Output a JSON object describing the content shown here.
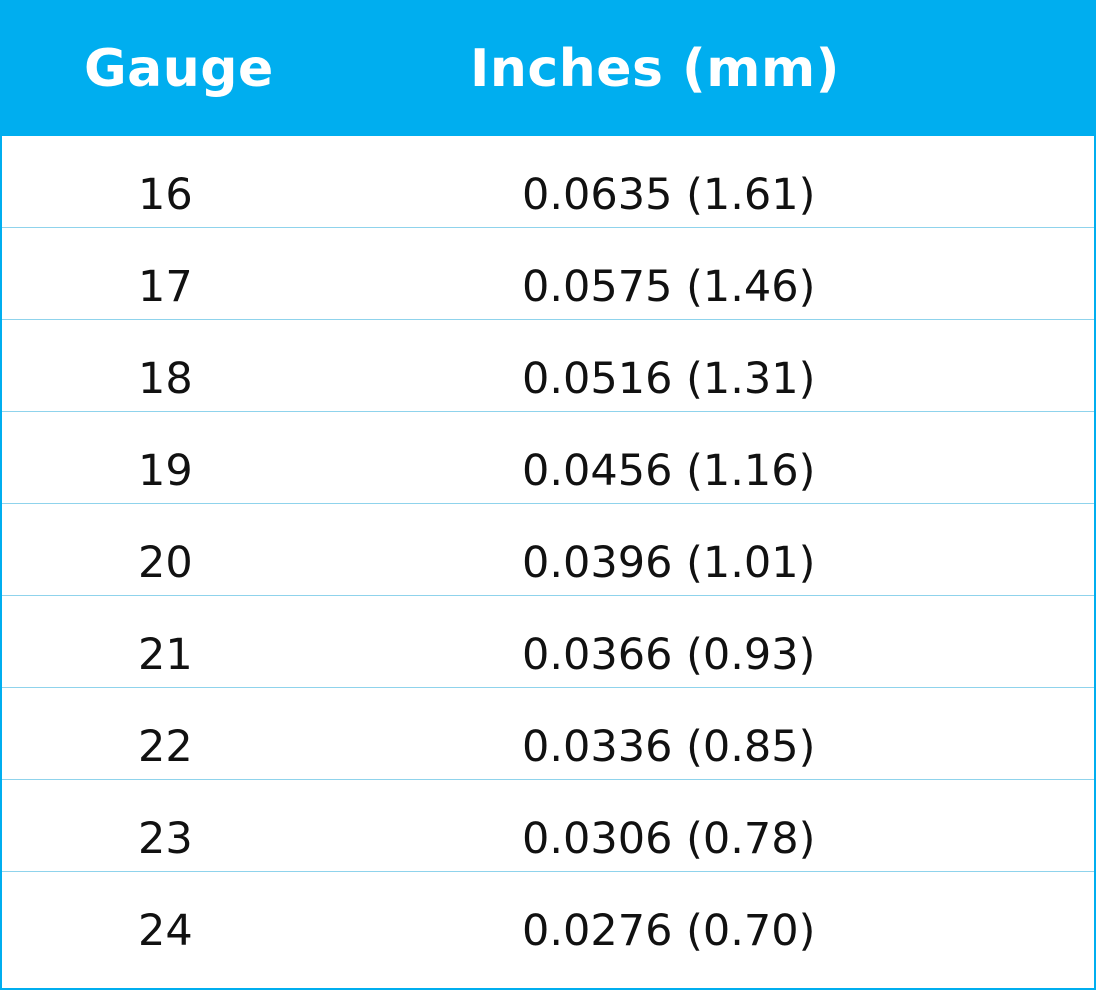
{
  "table": {
    "headers": {
      "gauge": "Gauge",
      "inches": "Inches (mm)"
    },
    "rows": [
      {
        "gauge": "16",
        "inches": "0.0635 (1.61)"
      },
      {
        "gauge": "17",
        "inches": "0.0575 (1.46)"
      },
      {
        "gauge": "18",
        "inches": "0.0516 (1.31)"
      },
      {
        "gauge": "19",
        "inches": "0.0456 (1.16)"
      },
      {
        "gauge": "20",
        "inches": "0.0396 (1.01)"
      },
      {
        "gauge": "21",
        "inches": "0.0366 (0.93)"
      },
      {
        "gauge": "22",
        "inches": "0.0336 (0.85)"
      },
      {
        "gauge": "23",
        "inches": "0.0306 (0.78)"
      },
      {
        "gauge": "24",
        "inches": "0.0276 (0.70)"
      }
    ]
  },
  "colors": {
    "header_background": "#00aeef",
    "header_text": "#ffffff",
    "divider": "#8fd3ec",
    "body_text": "#111111"
  }
}
